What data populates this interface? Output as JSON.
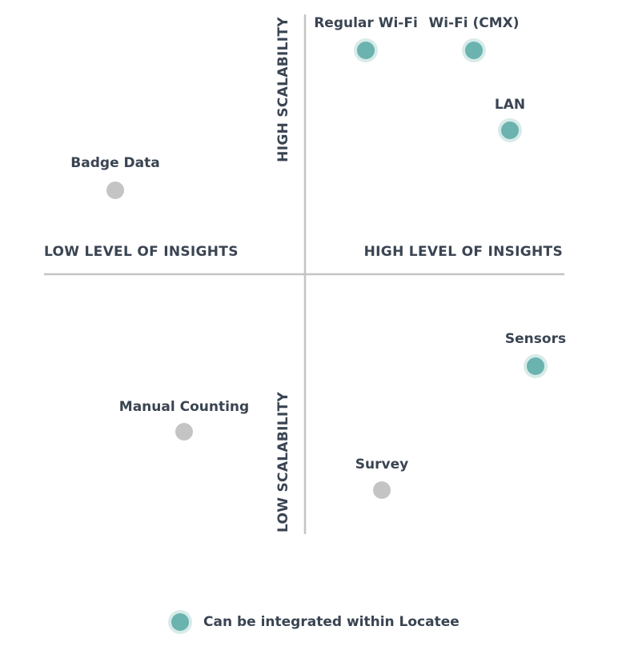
{
  "axes": {
    "top": "HIGH SCALABILITY",
    "bottom": "LOW SCALABILITY",
    "left": "LOW LEVEL OF INSIGHTS",
    "right": "HIGH LEVEL OF INSIGHTS"
  },
  "points": [
    {
      "label": "Regular Wi-Fi",
      "integrated": true
    },
    {
      "label": "Wi-Fi (CMX)",
      "integrated": true
    },
    {
      "label": "LAN",
      "integrated": true
    },
    {
      "label": "Badge Data",
      "integrated": false
    },
    {
      "label": "Sensors",
      "integrated": true
    },
    {
      "label": "Manual Counting",
      "integrated": false
    },
    {
      "label": "Survey",
      "integrated": false
    }
  ],
  "legend": {
    "label": "Can be integrated within Locatee"
  },
  "colors": {
    "integrated": "#6ab3ae",
    "integrated_halo": "#d7ebe9",
    "not_integrated": "#c4c4c4",
    "axis": "#c4c4c4",
    "text": "#3a4452"
  }
}
